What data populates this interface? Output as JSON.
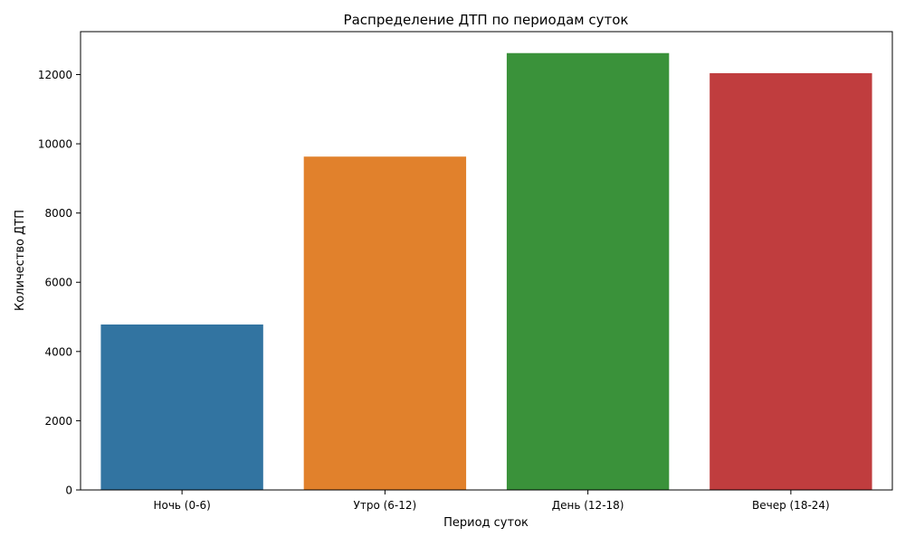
{
  "chart_data": {
    "type": "bar",
    "title": "Распределение ДТП по периодам суток",
    "xlabel": "Период суток",
    "ylabel": "Количество ДТП",
    "categories": [
      "Ночь (0-6)",
      "Утро (6-12)",
      "День (12-18)",
      "Вечер (18-24)"
    ],
    "values": [
      4780,
      9630,
      12620,
      12040
    ],
    "colors": [
      "#3274a1",
      "#e1812c",
      "#3a923a",
      "#c03d3e"
    ],
    "ylim": [
      0,
      13240
    ],
    "yticks": [
      0,
      2000,
      4000,
      6000,
      8000,
      10000,
      12000
    ],
    "grid": false,
    "legend": "none"
  }
}
